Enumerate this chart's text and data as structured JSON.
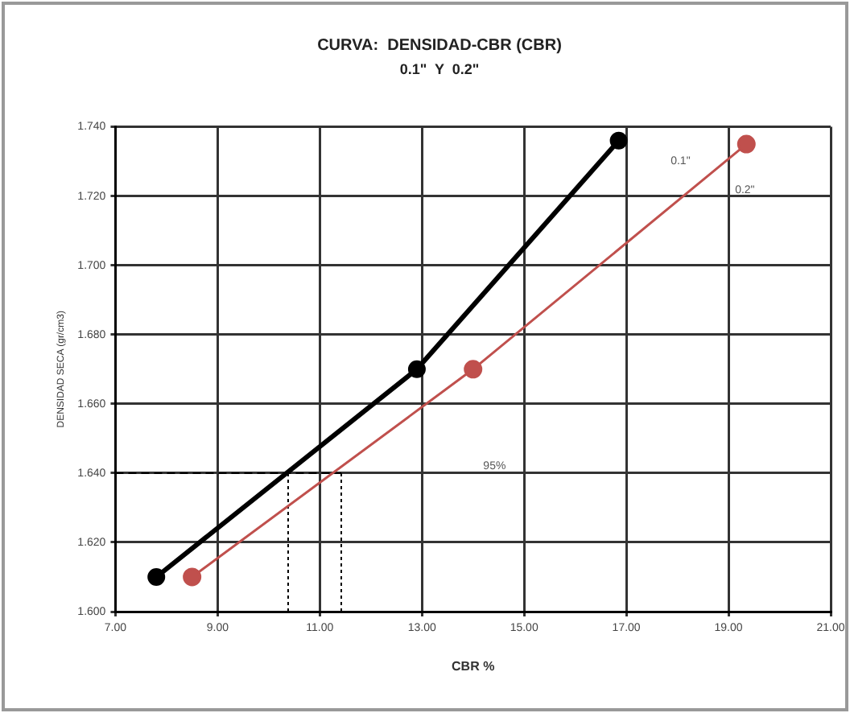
{
  "chart_data": {
    "type": "line",
    "title": "CURVA:  DENSIDAD-CBR (CBR)",
    "subtitle": "0.1\"  Y  0.2\"",
    "xlabel": "CBR %",
    "ylabel": "DENSIDAD SECA (gr/cm3)",
    "series": [
      {
        "color": "#000000",
        "x": [
          7.8,
          12.9,
          16.85
        ],
        "values": [
          1.61,
          1.67,
          1.736
        ]
      },
      {
        "color": "#c0504d",
        "x": [
          8.5,
          14.0,
          19.35
        ],
        "values": [
          1.61,
          1.67,
          1.735
        ]
      },
      {
        "color": "#000000",
        "x": [
          7,
          11.42
        ],
        "values": [
          1.64,
          1.64
        ],
        "line_style": "dashed",
        "marker": "none"
      },
      {
        "color": "#000000",
        "x": [
          10.38,
          10.38
        ],
        "values": [
          1.6,
          1.64
        ],
        "line_style": "dotted",
        "marker": "none"
      },
      {
        "color": "#000000",
        "x": [
          11.42,
          11.42
        ],
        "values": [
          1.6,
          1.64
        ],
        "line_style": "dotted",
        "marker": "none"
      }
    ],
    "xlim": [
      7,
      21
    ],
    "xticks": [
      {
        "value": 7,
        "label": "7.00"
      },
      {
        "value": 9,
        "label": "9.00"
      },
      {
        "value": 11,
        "label": "11.00"
      },
      {
        "value": 13,
        "label": "13.00"
      },
      {
        "value": 15,
        "label": "15.00"
      },
      {
        "value": 17,
        "label": "17.00"
      },
      {
        "value": 19,
        "label": "19.00"
      },
      {
        "value": 21,
        "label": "21.00"
      }
    ],
    "ylim": [
      1.6,
      1.74
    ],
    "yticks": [
      {
        "value": 1.6,
        "label": "1.600"
      },
      {
        "value": 1.62,
        "label": "1.620"
      },
      {
        "value": 1.64,
        "label": "1.640"
      },
      {
        "value": 1.66,
        "label": "1.660"
      },
      {
        "value": 1.68,
        "label": "1.680"
      },
      {
        "value": 1.7,
        "label": "1.700"
      },
      {
        "value": 1.72,
        "label": "1.720"
      },
      {
        "value": 1.74,
        "label": "1.740"
      }
    ],
    "annotations": [
      "0.1\"",
      "0.2\"",
      "95%"
    ],
    "grid": true,
    "legend": false,
    "marker": "circle",
    "line_style": "solid"
  }
}
